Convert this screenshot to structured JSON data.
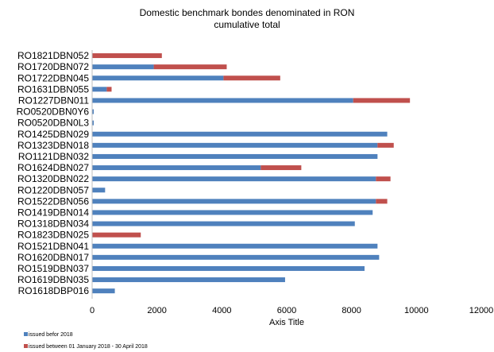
{
  "chart_data": {
    "type": "bar",
    "orientation": "horizontal",
    "stacked": true,
    "title": [
      "Domestic benchmark bondes denominated in RON",
      "cumulative total"
    ],
    "xlabel": "Axis Title",
    "ylabel": "",
    "xlim": [
      0,
      12000
    ],
    "xticks": [
      0,
      2000,
      4000,
      6000,
      8000,
      10000,
      12000
    ],
    "grid": false,
    "legend_position": "bottom-left",
    "categories": [
      "RO1821DBN052",
      "RO1720DBN072",
      "RO1722DBN045",
      "RO1631DBN055",
      "RO1227DBN011",
      "RO0520DBN0Y6",
      "RO0520DBN0L3",
      "RO1425DBN029",
      "RO1323DBN018",
      "RO1121DBN032",
      "RO1624DBN027",
      "RO1320DBN022",
      "RO1220DBN057",
      "RO1522DBN056",
      "RO1419DBN014",
      "RO1318DBN034",
      "RO1823DBN025",
      "RO1521DBN041",
      "RO1620DBN017",
      "RO1519DBN037",
      "RO1619DBN035",
      "RO1618DBP016"
    ],
    "series": [
      {
        "name": "issued befor 2018",
        "color": "#4f81bd",
        "values": [
          0,
          1900,
          4050,
          450,
          8050,
          50,
          50,
          9100,
          8800,
          8800,
          5200,
          8750,
          400,
          8750,
          8650,
          8100,
          0,
          8800,
          8850,
          8400,
          5950,
          700
        ]
      },
      {
        "name": "issued between 01 January 2018 - 30 April 2018",
        "color": "#c0504d",
        "values": [
          2150,
          2250,
          1750,
          150,
          1750,
          0,
          0,
          0,
          500,
          0,
          1250,
          450,
          0,
          350,
          0,
          0,
          1500,
          0,
          0,
          0,
          0,
          0
        ]
      }
    ]
  }
}
